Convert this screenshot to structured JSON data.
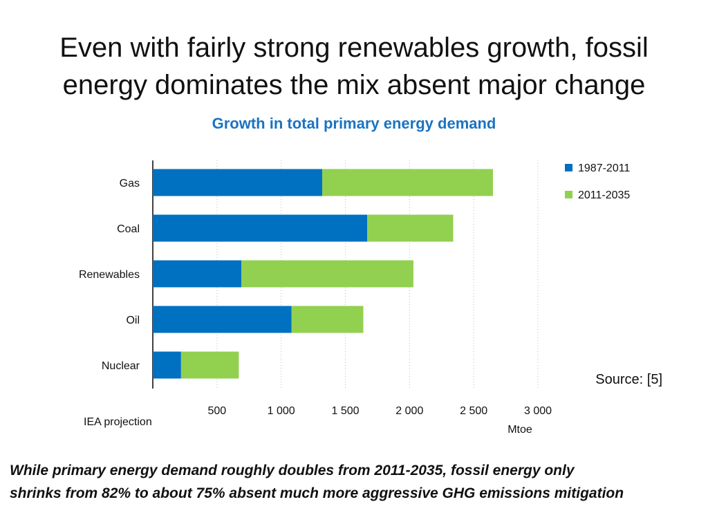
{
  "slide": {
    "title_line1": "Even with fairly strong renewables growth, fossil",
    "title_line2": "energy dominates the mix absent major change",
    "source": "Source: [5]",
    "footer_line1": "While primary energy demand roughly doubles from 2011-2035, fossil energy only",
    "footer_line2": "shrinks from 82% to about 75% absent much more aggressive GHG emissions mitigation"
  },
  "chart_data": {
    "type": "bar",
    "orientation": "horizontal",
    "stacked": true,
    "title": "Growth in total primary energy demand",
    "categories": [
      "Gas",
      "Coal",
      "Renewables",
      "Oil",
      "Nuclear"
    ],
    "series": [
      {
        "name": "1987-2011",
        "color": "#0070c0",
        "values": [
          1320,
          1670,
          690,
          1080,
          220
        ]
      },
      {
        "name": "2011-2035",
        "color": "#92d050",
        "values": [
          1330,
          670,
          1340,
          560,
          450
        ]
      }
    ],
    "xlim": [
      0,
      3000
    ],
    "xticks": [
      500,
      1000,
      1500,
      2000,
      2500,
      3000
    ],
    "xtick_labels": [
      "500",
      "1 000",
      "1 500",
      "2 000",
      "2 500",
      "3 000"
    ],
    "xlabel": "Mtoe",
    "note": "IEA projection",
    "grid": "vertical dotted",
    "legend_position": "top-right"
  }
}
